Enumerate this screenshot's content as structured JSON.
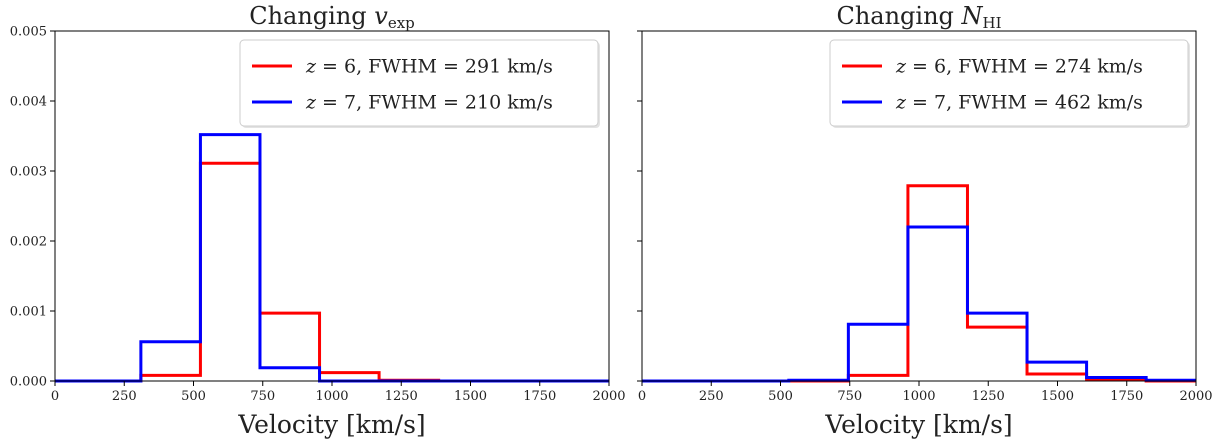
{
  "chart_data": [
    {
      "type": "line",
      "step": "histogram",
      "title": "Changing v_exp",
      "title_main": "Changing ",
      "title_var": "v",
      "title_sub": "exp",
      "xlabel": "Velocity [km/s]",
      "ylabel": "",
      "xlim": [
        0,
        2000
      ],
      "ylim": [
        0,
        0.005
      ],
      "xticks": [
        "0",
        "250",
        "500",
        "750",
        "1000",
        "1250",
        "1500",
        "1750",
        "2000"
      ],
      "yticks": [
        "0.000",
        "0.001",
        "0.002",
        "0.003",
        "0.004",
        "0.005"
      ],
      "grid": false,
      "legend_position": "top-right",
      "series": [
        {
          "name": "z = 6, FWHM = 291 km/s",
          "legend_prefix": "z",
          "legend_rest": " = 6, FWHM = 291 km/s",
          "color": "#ff0000",
          "bin_edges": [
            0,
            310,
            525,
            740,
            955,
            1170,
            1385,
            1600,
            1815,
            2000
          ],
          "values": [
            0,
            8e-05,
            0.00311,
            0.00097,
            0.00012,
            1e-05,
            0,
            0,
            0
          ]
        },
        {
          "name": "z = 7, FWHM = 210 km/s",
          "legend_prefix": "z",
          "legend_rest": " = 7, FWHM = 210 km/s",
          "color": "#0000ff",
          "bin_edges": [
            0,
            310,
            525,
            740,
            955,
            1170,
            1385,
            1600,
            1815,
            2000
          ],
          "values": [
            0,
            0.00056,
            0.00352,
            0.00019,
            0,
            0,
            0,
            0,
            0
          ]
        }
      ]
    },
    {
      "type": "line",
      "step": "histogram",
      "title": "Changing N_HI",
      "title_main": "Changing ",
      "title_var": "N",
      "title_sub": "HI",
      "xlabel": "Velocity [km/s]",
      "ylabel": "",
      "xlim": [
        0,
        2000
      ],
      "ylim": [
        0,
        0.005
      ],
      "xticks": [
        "0",
        "250",
        "500",
        "750",
        "1000",
        "1250",
        "1500",
        "1750",
        "2000"
      ],
      "yticks": [],
      "grid": false,
      "legend_position": "top-right",
      "series": [
        {
          "name": "z = 6, FWHM = 274 km/s",
          "legend_prefix": "z",
          "legend_rest": " = 6, FWHM = 274 km/s",
          "color": "#ff0000",
          "bin_edges": [
            0,
            530,
            745,
            960,
            1175,
            1390,
            1605,
            1820,
            2000
          ],
          "values": [
            0,
            0,
            8e-05,
            0.00279,
            0.00077,
            0.0001,
            2e-05,
            0
          ]
        },
        {
          "name": "z = 7, FWHM = 462 km/s",
          "legend_prefix": "z",
          "legend_rest": " = 7, FWHM = 462 km/s",
          "color": "#0000ff",
          "bin_edges": [
            0,
            530,
            745,
            960,
            1175,
            1390,
            1605,
            1820,
            2000
          ],
          "values": [
            0,
            1e-05,
            0.00081,
            0.0022,
            0.00097,
            0.00027,
            5e-05,
            1e-05
          ]
        }
      ]
    }
  ]
}
